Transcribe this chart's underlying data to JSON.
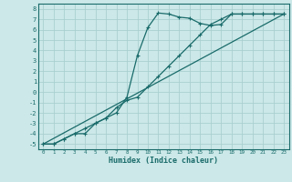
{
  "xlabel": "Humidex (Indice chaleur)",
  "bg_color": "#cce8e8",
  "grid_color": "#aacfcf",
  "line_color": "#1a6b6b",
  "xlim": [
    -0.5,
    23.5
  ],
  "ylim": [
    -5.5,
    8.5
  ],
  "xticks": [
    0,
    1,
    2,
    3,
    4,
    5,
    6,
    7,
    8,
    9,
    10,
    11,
    12,
    13,
    14,
    15,
    16,
    17,
    18,
    19,
    20,
    21,
    22,
    23
  ],
  "yticks": [
    -5,
    -4,
    -3,
    -2,
    -1,
    0,
    1,
    2,
    3,
    4,
    5,
    6,
    7,
    8
  ],
  "series1_x": [
    0,
    1,
    2,
    3,
    4,
    5,
    6,
    7,
    8,
    9,
    10,
    11,
    12,
    13,
    14,
    15,
    16,
    17,
    18,
    19,
    20,
    21,
    22,
    23
  ],
  "series1_y": [
    -5,
    -5,
    -4.5,
    -4,
    -4,
    -3,
    -2.5,
    -2,
    -0.5,
    3.5,
    6.2,
    7.6,
    7.5,
    7.2,
    7.1,
    6.6,
    6.4,
    6.5,
    7.5,
    7.5,
    7.5,
    7.5,
    7.5,
    7.5
  ],
  "series2_x": [
    0,
    1,
    2,
    3,
    4,
    5,
    6,
    7,
    8,
    9,
    10,
    11,
    12,
    13,
    14,
    15,
    16,
    17,
    18,
    19,
    20,
    21,
    22,
    23
  ],
  "series2_y": [
    -5,
    -5,
    -4.5,
    -4,
    -3.5,
    -3,
    -2.5,
    -1.5,
    -0.8,
    -0.5,
    0.5,
    1.5,
    2.5,
    3.5,
    4.5,
    5.5,
    6.5,
    7.0,
    7.5,
    7.5,
    7.5,
    7.5,
    7.5,
    7.5
  ],
  "series3_x": [
    0,
    23
  ],
  "series3_y": [
    -5,
    7.5
  ]
}
